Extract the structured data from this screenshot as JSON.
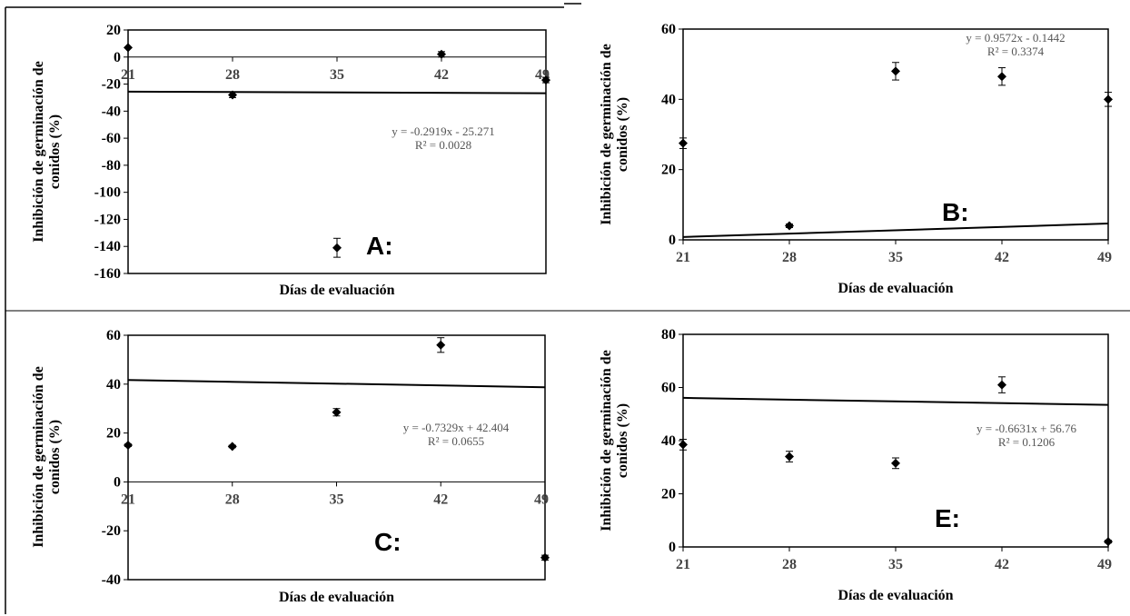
{
  "chart_data": [
    {
      "id": "A",
      "type": "scatter",
      "panel_label": "A:",
      "xlabel": "Días de evaluación",
      "ylabel_line1": "Inhibición de germinación de",
      "ylabel_line2": "conidos  (%)",
      "xlim": [
        21,
        49
      ],
      "ylim": [
        -160,
        20
      ],
      "x_ticks": [
        21,
        28,
        35,
        42,
        49
      ],
      "y_ticks": [
        20,
        0,
        -20,
        -40,
        -60,
        -80,
        -100,
        -120,
        -140,
        -160
      ],
      "x_axis_at_zero": true,
      "points": [
        {
          "x": 21,
          "y": 7,
          "err": 0
        },
        {
          "x": 28,
          "y": -28,
          "err": 2
        },
        {
          "x": 35,
          "y": -141,
          "err": 7
        },
        {
          "x": 42,
          "y": 2,
          "err": 2
        },
        {
          "x": 49,
          "y": -17,
          "err": 2
        }
      ],
      "trendline": {
        "slope": -0.2919,
        "intercept": -25.271
      },
      "equation": "y = -0.2919x - 25.271",
      "r2": "R² = 0.0028"
    },
    {
      "id": "B",
      "type": "scatter",
      "panel_label": "B:",
      "xlabel": "Días de evaluación",
      "ylabel_line1": "Inhibición de germinación de",
      "ylabel_line2": "conidos  (%)",
      "xlim": [
        21,
        49
      ],
      "ylim": [
        0,
        60
      ],
      "x_ticks": [
        21,
        28,
        35,
        42,
        49
      ],
      "y_ticks": [
        60,
        40,
        20,
        0
      ],
      "x_axis_at_zero": false,
      "points": [
        {
          "x": 21,
          "y": 27.5,
          "err": 1.5
        },
        {
          "x": 28,
          "y": 4,
          "err": 0.5
        },
        {
          "x": 35,
          "y": 48,
          "err": 2.5
        },
        {
          "x": 42,
          "y": 46.5,
          "err": 2.5
        },
        {
          "x": 49,
          "y": 40,
          "err": 2
        }
      ],
      "trendline": {
        "slope": 0.9572,
        "intercept": -0.1442
      },
      "equation": "y = 0.9572x - 0.1442",
      "r2": "R² = 0.3374"
    },
    {
      "id": "C",
      "type": "scatter",
      "panel_label": "C:",
      "xlabel": "Días de evaluación",
      "ylabel_line1": "Inhibición de germinación de",
      "ylabel_line2": "conidos  (%)",
      "xlim": [
        21,
        49
      ],
      "ylim": [
        -40,
        60
      ],
      "x_ticks": [
        21,
        28,
        35,
        42,
        49
      ],
      "y_ticks": [
        60,
        40,
        20,
        0,
        -20,
        -40
      ],
      "x_axis_at_zero": true,
      "points": [
        {
          "x": 21,
          "y": 15,
          "err": 0.5
        },
        {
          "x": 28,
          "y": 14.5,
          "err": 0.5
        },
        {
          "x": 35,
          "y": 28.5,
          "err": 1.5
        },
        {
          "x": 42,
          "y": 56,
          "err": 3
        },
        {
          "x": 49,
          "y": -31,
          "err": 1
        }
      ],
      "trendline": {
        "slope": -0.7329,
        "intercept": 42.404
      },
      "equation": "y = -0.7329x + 42.404",
      "r2": "R² = 0.0655"
    },
    {
      "id": "E",
      "type": "scatter",
      "panel_label": "E:",
      "xlabel": "Días de evaluación",
      "ylabel_line1": "Inhibición de germinación de",
      "ylabel_line2": "conidos  (%)",
      "xlim": [
        21,
        49
      ],
      "ylim": [
        0,
        80
      ],
      "x_ticks": [
        21,
        28,
        35,
        42,
        49
      ],
      "y_ticks": [
        80,
        60,
        40,
        20,
        0
      ],
      "x_axis_at_zero": false,
      "points": [
        {
          "x": 21,
          "y": 38.5,
          "err": 2
        },
        {
          "x": 28,
          "y": 34,
          "err": 2
        },
        {
          "x": 35,
          "y": 31.5,
          "err": 2
        },
        {
          "x": 42,
          "y": 61,
          "err": 3
        },
        {
          "x": 49,
          "y": 2,
          "err": 0.5
        }
      ],
      "trendline": {
        "slope": -0.6631,
        "intercept": 56.76
      },
      "equation": "y = -0.6631x + 56.76",
      "r2": "R² = 0.1206"
    }
  ]
}
